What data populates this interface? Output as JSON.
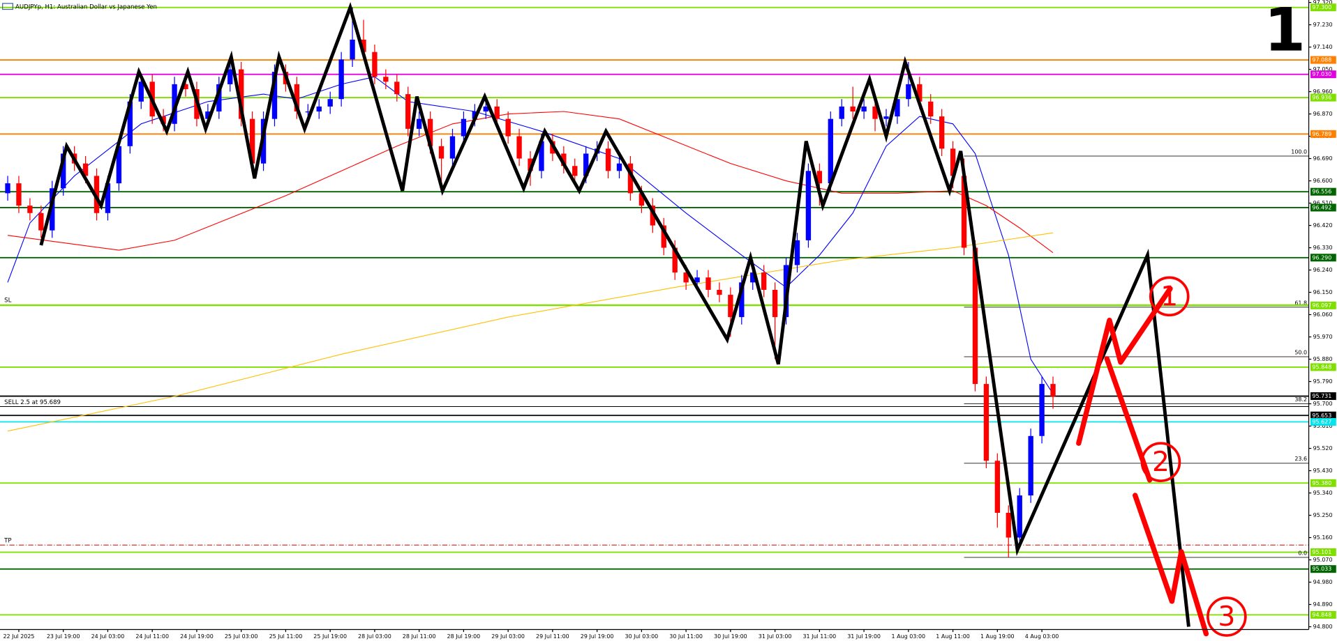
{
  "chart_data": {
    "type": "candlestick",
    "title": "AUDJPYp, H1:  Australian Dollar vs Japanese Yen",
    "corner_label": "1",
    "annotations": [
      "1",
      "2",
      "3"
    ],
    "up_color": "#0000ff",
    "down_color": "#ff0000",
    "ylim": [
      94.789,
      97.33
    ],
    "yticks": [
      {
        "value": 97.32,
        "label": "97.320"
      },
      {
        "value": 97.23,
        "label": "97.230"
      },
      {
        "value": 97.14,
        "label": "97.140"
      },
      {
        "value": 97.05,
        "label": "97.050"
      },
      {
        "value": 96.96,
        "label": "96.960"
      },
      {
        "value": 96.87,
        "label": "96.870"
      },
      {
        "value": 96.78,
        "label": "96.780"
      },
      {
        "value": 96.69,
        "label": "96.690"
      },
      {
        "value": 96.6,
        "label": "96.600"
      },
      {
        "value": 96.51,
        "label": "96.510"
      },
      {
        "value": 96.42,
        "label": "96.420"
      },
      {
        "value": 96.33,
        "label": "96.330"
      },
      {
        "value": 96.24,
        "label": "96.240"
      },
      {
        "value": 96.15,
        "label": "96.150"
      },
      {
        "value": 96.06,
        "label": "96.060"
      },
      {
        "value": 95.97,
        "label": "95.970"
      },
      {
        "value": 95.88,
        "label": "95.880"
      },
      {
        "value": 95.79,
        "label": "95.790"
      },
      {
        "value": 95.7,
        "label": "95.700"
      },
      {
        "value": 95.61,
        "label": "95.610"
      },
      {
        "value": 95.52,
        "label": "95.520"
      },
      {
        "value": 95.43,
        "label": "95.430"
      },
      {
        "value": 95.34,
        "label": "95.340"
      },
      {
        "value": 95.25,
        "label": "95.250"
      },
      {
        "value": 95.16,
        "label": "95.160"
      },
      {
        "value": 95.07,
        "label": "95.070"
      },
      {
        "value": 94.98,
        "label": "94.980"
      },
      {
        "value": 94.89,
        "label": "94.890"
      },
      {
        "value": 94.8,
        "label": "94.800"
      }
    ],
    "categories": [
      null,
      "22 Jul 2025",
      null,
      null,
      null,
      "23 Jul 19:00",
      null,
      null,
      null,
      "24 Jul 03:00",
      null,
      null,
      null,
      "24 Jul 11:00",
      null,
      null,
      null,
      "24 Jul 19:00",
      null,
      null,
      null,
      "25 Jul 03:00",
      null,
      null,
      null,
      "25 Jul 11:00",
      null,
      null,
      null,
      "25 Jul 19:00",
      null,
      null,
      null,
      "28 Jul 03:00",
      null,
      null,
      null,
      "28 Jul 11:00",
      null,
      null,
      null,
      "28 Jul 19:00",
      null,
      null,
      null,
      "29 Jul 03:00",
      null,
      null,
      null,
      "29 Jul 11:00",
      null,
      null,
      null,
      "29 Jul 19:00",
      null,
      null,
      null,
      "30 Jul 03:00",
      null,
      null,
      null,
      "30 Jul 11:00",
      null,
      null,
      null,
      "30 Jul 19:00",
      null,
      null,
      null,
      "31 Jul 03:00",
      null,
      null,
      null,
      "31 Jul 11:00",
      null,
      null,
      null,
      "31 Jul 19:00",
      null,
      null,
      null,
      "1 Aug 03:00",
      null,
      null,
      null,
      "1 Aug 11:00",
      null,
      null,
      null,
      "1 Aug 19:00",
      null,
      null,
      null,
      "4 Aug 03:00",
      null
    ],
    "open": [
      96.55,
      96.59,
      96.5,
      96.47,
      96.4,
      96.57,
      96.71,
      96.67,
      96.62,
      96.47,
      96.59,
      96.74,
      96.92,
      97.0,
      96.86,
      96.83,
      96.99,
      96.97,
      96.85,
      96.88,
      96.99,
      97.05,
      96.85,
      96.67,
      96.85,
      97.04,
      96.99,
      96.88,
      96.88,
      96.9,
      96.93,
      97.09,
      97.17,
      97.12,
      97.02,
      97.0,
      96.95,
      96.81,
      96.85,
      96.74,
      96.69,
      96.78,
      96.85,
      96.88,
      96.9,
      96.85,
      96.78,
      96.69,
      96.64,
      96.76,
      96.71,
      96.66,
      96.62,
      96.71,
      96.73,
      96.64,
      96.67,
      96.55,
      96.5,
      96.42,
      96.33,
      96.23,
      96.19,
      96.21,
      96.16,
      96.14,
      96.05,
      96.19,
      96.23,
      96.16,
      96.05,
      96.26,
      96.36,
      96.64,
      96.59,
      96.85,
      96.9,
      96.88,
      96.9,
      96.85,
      96.86,
      96.93,
      96.99,
      96.92,
      96.86,
      96.73,
      96.62,
      96.33,
      95.78,
      95.47,
      95.26,
      95.16,
      95.33,
      95.57,
      95.78
    ],
    "high": [
      96.62,
      96.62,
      96.53,
      96.5,
      96.6,
      96.74,
      96.74,
      96.7,
      96.65,
      96.62,
      96.77,
      96.95,
      97.03,
      97.03,
      96.89,
      97.02,
      97.02,
      97.0,
      96.91,
      97.02,
      97.08,
      97.08,
      96.88,
      96.88,
      97.07,
      97.07,
      97.02,
      96.91,
      96.93,
      96.96,
      97.12,
      97.3,
      97.25,
      97.15,
      97.05,
      97.03,
      96.98,
      96.88,
      96.88,
      96.77,
      96.81,
      96.88,
      96.91,
      96.93,
      96.93,
      96.88,
      96.81,
      96.72,
      96.79,
      96.79,
      96.74,
      96.69,
      96.74,
      96.76,
      96.76,
      96.7,
      96.7,
      96.58,
      96.53,
      96.45,
      96.36,
      96.26,
      96.24,
      96.24,
      96.19,
      96.17,
      96.22,
      96.28,
      96.26,
      96.19,
      96.29,
      96.39,
      96.67,
      96.67,
      96.88,
      96.93,
      96.98,
      96.93,
      96.93,
      96.89,
      96.96,
      97.08,
      97.02,
      96.95,
      96.89,
      96.76,
      96.69,
      96.36,
      95.81,
      95.5,
      95.29,
      95.36,
      95.6,
      95.81,
      95.81
    ],
    "low": [
      96.52,
      96.47,
      96.44,
      96.37,
      96.37,
      96.54,
      96.64,
      96.59,
      96.44,
      96.44,
      96.56,
      96.71,
      96.89,
      96.83,
      96.8,
      96.8,
      96.94,
      96.82,
      96.82,
      96.85,
      96.96,
      96.82,
      96.64,
      96.64,
      96.82,
      96.96,
      96.85,
      96.85,
      96.85,
      96.87,
      96.9,
      97.06,
      97.09,
      96.99,
      96.97,
      96.92,
      96.78,
      96.78,
      96.71,
      96.58,
      96.66,
      96.75,
      96.82,
      96.85,
      96.82,
      96.75,
      96.66,
      96.58,
      96.61,
      96.68,
      96.63,
      96.58,
      96.59,
      96.68,
      96.61,
      96.61,
      96.52,
      96.47,
      96.39,
      96.3,
      96.2,
      96.16,
      96.16,
      96.13,
      96.11,
      95.97,
      96.02,
      96.16,
      96.13,
      95.88,
      96.02,
      96.23,
      96.33,
      96.5,
      96.56,
      96.82,
      96.85,
      96.85,
      96.8,
      96.82,
      96.83,
      96.9,
      96.89,
      96.83,
      96.7,
      96.57,
      96.3,
      95.75,
      95.44,
      95.2,
      95.08,
      95.13,
      95.3,
      95.54,
      95.68
    ],
    "close": [
      96.59,
      96.5,
      96.47,
      96.4,
      96.57,
      96.71,
      96.67,
      96.62,
      96.47,
      96.59,
      96.74,
      96.92,
      97.0,
      96.86,
      96.83,
      96.99,
      96.97,
      96.85,
      96.88,
      96.99,
      97.05,
      96.85,
      96.67,
      96.85,
      97.04,
      96.99,
      96.88,
      96.88,
      96.9,
      96.93,
      97.09,
      97.17,
      97.12,
      97.02,
      97.0,
      96.95,
      96.81,
      96.85,
      96.74,
      96.69,
      96.78,
      96.85,
      96.88,
      96.9,
      96.85,
      96.78,
      96.69,
      96.64,
      96.76,
      96.71,
      96.66,
      96.62,
      96.71,
      96.73,
      96.64,
      96.67,
      96.55,
      96.5,
      96.42,
      96.33,
      96.23,
      96.19,
      96.21,
      96.16,
      96.14,
      96.05,
      96.19,
      96.23,
      96.16,
      96.05,
      96.26,
      96.36,
      96.64,
      96.59,
      96.85,
      96.9,
      96.88,
      96.9,
      96.85,
      96.86,
      96.93,
      96.99,
      96.92,
      96.86,
      96.73,
      96.62,
      96.33,
      95.78,
      95.47,
      95.26,
      95.16,
      95.33,
      95.57,
      95.78,
      95.73
    ],
    "moving_averages": [
      {
        "color": "#0000ff",
        "x": [
          0,
          2,
          6,
          12,
          18,
          23,
          26,
          30,
          33,
          36,
          42,
          48,
          55,
          61,
          66,
          70,
          73,
          76,
          79,
          82,
          85,
          87,
          90,
          92,
          94
        ],
        "values": [
          96.19,
          96.43,
          96.62,
          96.83,
          96.92,
          96.95,
          96.93,
          96.99,
          97.02,
          96.92,
          96.88,
          96.8,
          96.69,
          96.47,
          96.3,
          96.17,
          96.3,
          96.47,
          96.74,
          96.86,
          96.83,
          96.71,
          96.3,
          95.88,
          95.74
        ]
      },
      {
        "color": "#ff0000",
        "x": [
          0,
          5,
          10,
          15,
          20,
          25,
          30,
          35,
          40,
          45,
          50,
          55,
          60,
          65,
          70,
          75,
          80,
          85,
          88,
          91,
          94
        ],
        "values": [
          96.38,
          96.35,
          96.32,
          96.36,
          96.45,
          96.54,
          96.64,
          96.74,
          96.83,
          96.87,
          96.88,
          96.85,
          96.76,
          96.67,
          96.6,
          96.55,
          96.55,
          96.56,
          96.5,
          96.41,
          96.31
        ]
      },
      {
        "color": "#ffc000",
        "x": [
          0,
          15,
          30,
          45,
          60,
          75,
          85,
          94
        ],
        "values": [
          95.59,
          95.73,
          95.9,
          96.05,
          96.17,
          96.28,
          96.33,
          96.39
        ]
      }
    ],
    "zigzag": {
      "color": "#000000",
      "x": [
        3,
        5.3,
        8.4,
        11.8,
        14.3,
        16.2,
        17.8,
        20.1,
        22.2,
        24.4,
        26.7,
        30.8,
        35.5,
        36.8,
        39.1,
        42.9,
        46.4,
        48.3,
        51.4,
        53.8,
        64.7,
        66.8,
        69.3,
        71.8,
        73.3,
        77.5,
        79,
        80.7,
        84.7,
        85.7,
        90.8,
        102.5,
        106.2
      ],
      "y": [
        96.34,
        96.74,
        96.5,
        97.04,
        96.8,
        97.04,
        96.81,
        97.1,
        96.61,
        97.1,
        96.81,
        97.3,
        96.56,
        96.94,
        96.56,
        96.94,
        96.57,
        96.8,
        96.56,
        96.8,
        95.96,
        96.29,
        95.86,
        96.76,
        96.5,
        97.01,
        96.78,
        97.08,
        96.56,
        96.72,
        95.11,
        96.3,
        94.8
      ]
    },
    "levels": [
      {
        "value": 97.3,
        "label": "97.300",
        "color": "#7fe000"
      },
      {
        "value": 97.088,
        "label": "97.088",
        "color": "#ff8000"
      },
      {
        "value": 97.03,
        "label": "97.030",
        "color": "#e000e0"
      },
      {
        "value": 96.936,
        "label": "96.936",
        "color": "#7fe000"
      },
      {
        "value": 96.789,
        "label": "96.789",
        "color": "#ff8000"
      },
      {
        "value": 96.556,
        "label": "96.556",
        "color": "#006400"
      },
      {
        "value": 96.492,
        "label": "96.492",
        "color": "#006400"
      },
      {
        "value": 96.29,
        "label": "96.290",
        "color": "#006400"
      },
      {
        "value": 96.097,
        "label": "96.097",
        "color": "#7fe000"
      },
      {
        "value": 95.848,
        "label": "95.848",
        "color": "#7fe000"
      },
      {
        "value": 95.731,
        "label": "95.731",
        "color": "#000000"
      },
      {
        "value": 95.653,
        "label": "95.653",
        "color": "#000000"
      },
      {
        "value": 95.627,
        "label": "95.627",
        "color": "#00e5ee"
      },
      {
        "value": 95.38,
        "label": "95.380",
        "color": "#7fe000"
      },
      {
        "value": 95.101,
        "label": "95.101",
        "color": "#7fe000"
      },
      {
        "value": 95.033,
        "label": "95.033",
        "color": "#006400"
      },
      {
        "value": 94.848,
        "label": "94.848",
        "color": "#7fe000"
      }
    ],
    "fibonacci": [
      {
        "value": 96.7,
        "label": "100.0"
      },
      {
        "value": 96.09,
        "label": "61.8"
      },
      {
        "value": 95.89,
        "label": "50.0"
      },
      {
        "value": 95.7,
        "label": "38.2"
      },
      {
        "value": 95.46,
        "label": "23.6"
      },
      {
        "value": 95.08,
        "label": "0.0"
      }
    ],
    "trade_lines": [
      {
        "label": "SELL 2.5 at 95.689",
        "value": 95.689,
        "color": "#000000",
        "dashed": false
      },
      {
        "label": "SL",
        "value": 96.1,
        "color": "#7fe000",
        "dashed": false
      },
      {
        "label": "TP",
        "value": 95.13,
        "color": "#d00000",
        "dashed": true
      }
    ]
  }
}
